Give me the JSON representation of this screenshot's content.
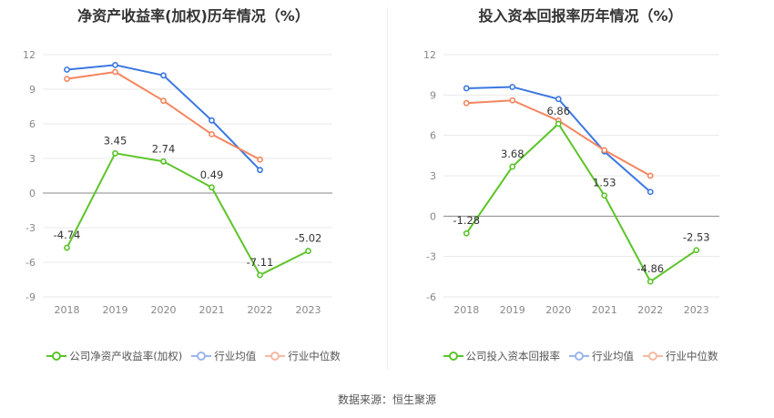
{
  "source": "数据来源：恒生聚源",
  "colors": {
    "company": "#5bc429",
    "avg": "#3b77e0",
    "median": "#f5855f"
  },
  "chart_data": [
    {
      "type": "line",
      "title": "净资产收益率(加权)历年情况（%）",
      "categories": [
        "2018",
        "2019",
        "2020",
        "2021",
        "2022",
        "2023"
      ],
      "ylim": [
        -9,
        12
      ],
      "yticks": [
        12,
        9,
        6,
        3,
        0,
        -3,
        -6,
        -9
      ],
      "grid": true,
      "legend_position": "bottom",
      "series": [
        {
          "name": "公司净资产收益率(加权)",
          "color": "#5bc429",
          "values": [
            -4.74,
            3.45,
            2.74,
            0.49,
            -7.11,
            -5.02
          ],
          "labeled": true
        },
        {
          "name": "行业均值",
          "color": "#3b77e0",
          "values": [
            10.7,
            11.1,
            10.2,
            6.3,
            2.0,
            null
          ],
          "labeled": false
        },
        {
          "name": "行业中位数",
          "color": "#f5855f",
          "values": [
            9.9,
            10.5,
            8.0,
            5.1,
            2.9,
            null
          ],
          "labeled": false
        }
      ]
    },
    {
      "type": "line",
      "title": "投入资本回报率历年情况（%）",
      "categories": [
        "2018",
        "2019",
        "2020",
        "2021",
        "2022",
        "2023"
      ],
      "ylim": [
        -6,
        12
      ],
      "yticks": [
        12,
        9,
        6,
        3,
        0,
        -3,
        -6
      ],
      "grid": true,
      "legend_position": "bottom",
      "series": [
        {
          "name": "公司投入资本回报率",
          "color": "#5bc429",
          "values": [
            -1.28,
            3.68,
            6.86,
            1.53,
            -4.86,
            -2.53
          ],
          "labeled": true
        },
        {
          "name": "行业均值",
          "color": "#3b77e0",
          "values": [
            9.5,
            9.6,
            8.7,
            4.8,
            1.8,
            null
          ],
          "labeled": false
        },
        {
          "name": "行业中位数",
          "color": "#f5855f",
          "values": [
            8.4,
            8.6,
            7.1,
            4.9,
            3.0,
            null
          ],
          "labeled": false
        }
      ]
    }
  ]
}
